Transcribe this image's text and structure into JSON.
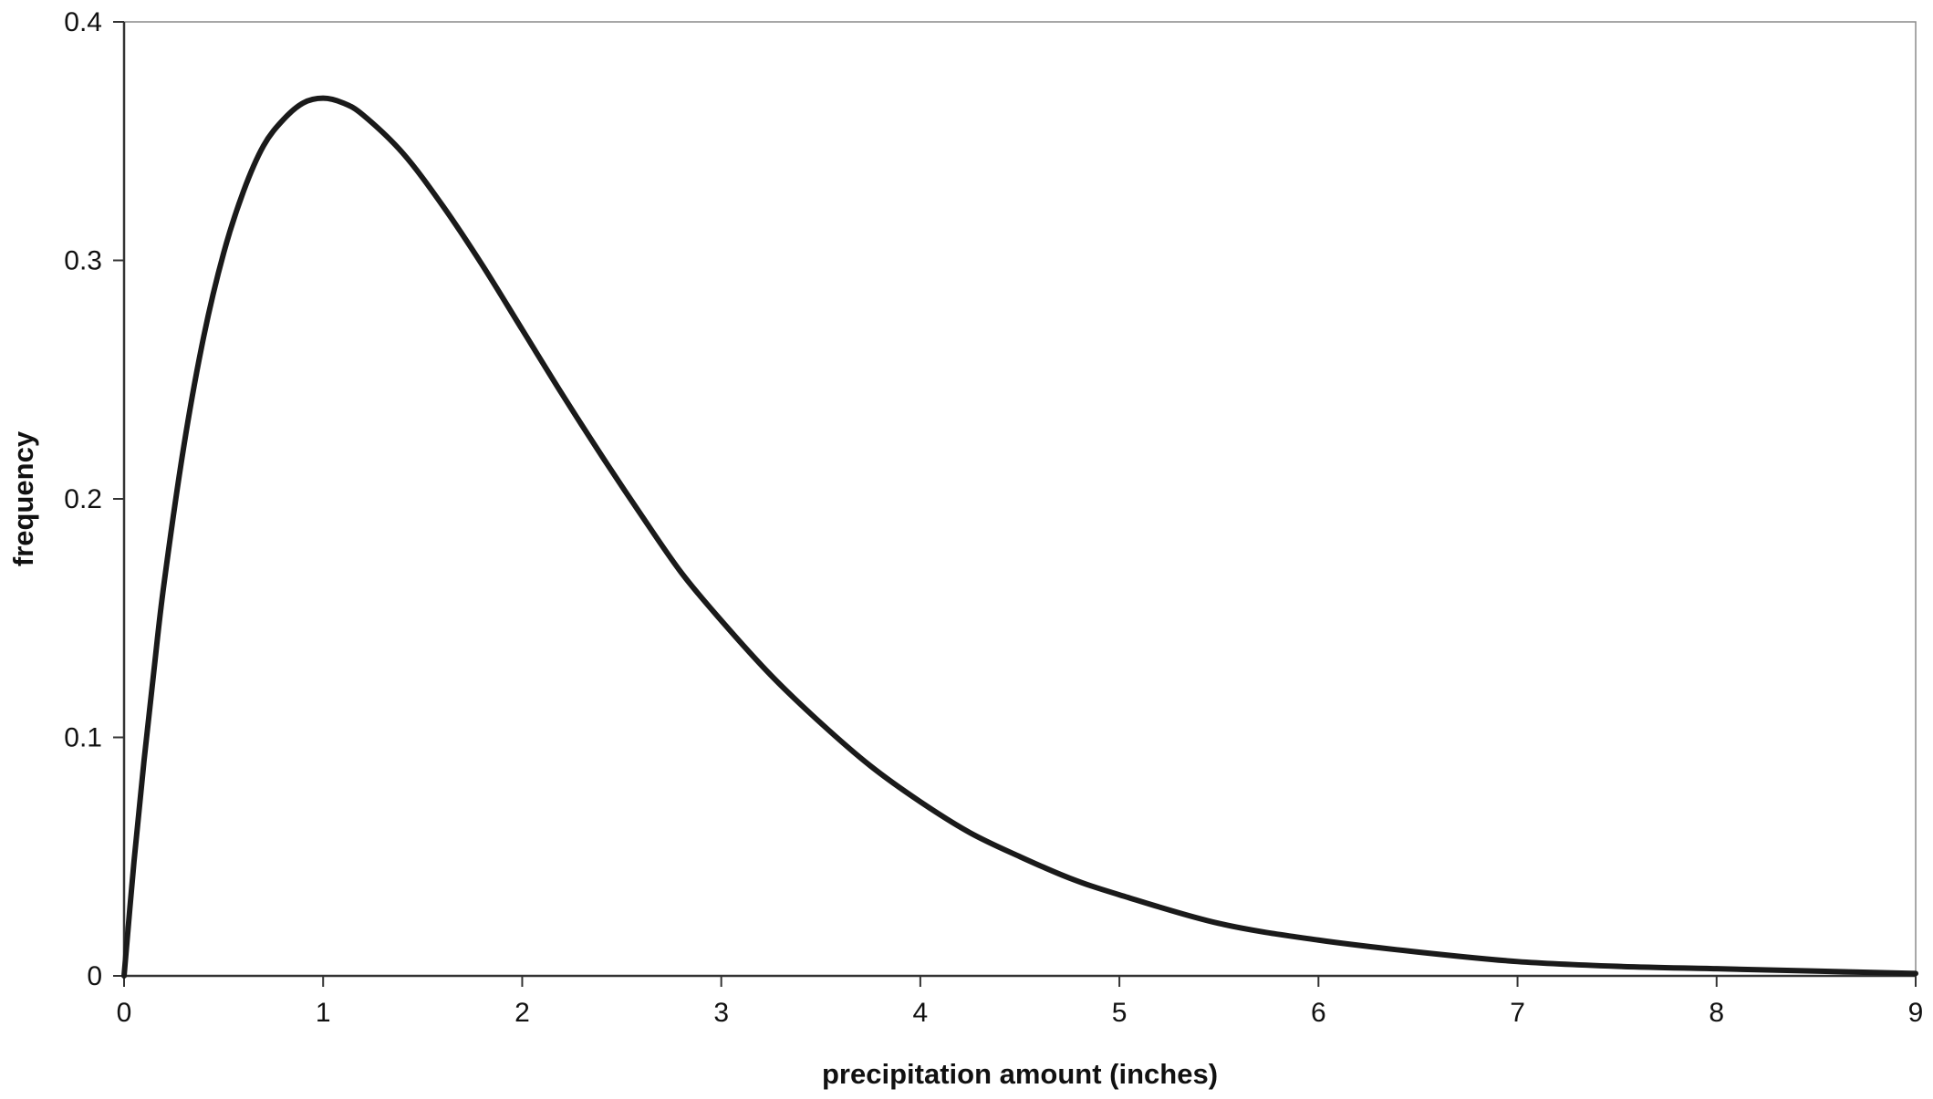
{
  "chart_data": {
    "type": "line",
    "title": "",
    "xlabel": "precipitation amount (inches)",
    "ylabel": "frequency",
    "xlim": [
      0,
      9
    ],
    "ylim": [
      0,
      0.4
    ],
    "x_ticks": [
      0,
      1,
      2,
      3,
      4,
      5,
      6,
      7,
      8,
      9
    ],
    "x_tick_labels": [
      "0",
      "1",
      "2",
      "3",
      "4",
      "5",
      "6",
      "7",
      "8",
      "9"
    ],
    "y_ticks": [
      0,
      0.1,
      0.2,
      0.3,
      0.4
    ],
    "y_tick_labels": [
      "0",
      "0.1",
      "0.2",
      "0.3",
      "0.4"
    ],
    "grid": false,
    "legend": "none",
    "line_color": "#1a1a1a",
    "series": [
      {
        "x": [
          0,
          0.05,
          0.1,
          0.15,
          0.2,
          0.3,
          0.4,
          0.5,
          0.6,
          0.7,
          0.8,
          0.9,
          1.0,
          1.1,
          1.2,
          1.4,
          1.6,
          1.8,
          2.0,
          2.2,
          2.4,
          2.6,
          2.8,
          3.0,
          3.25,
          3.5,
          3.75,
          4.0,
          4.25,
          4.5,
          4.75,
          5.0,
          5.5,
          6.0,
          6.5,
          7.0,
          7.5,
          8.0,
          8.5,
          9.0
        ],
        "y": [
          0,
          0.048,
          0.09,
          0.128,
          0.164,
          0.222,
          0.268,
          0.303,
          0.329,
          0.348,
          0.359,
          0.366,
          0.368,
          0.366,
          0.361,
          0.345,
          0.323,
          0.298,
          0.271,
          0.244,
          0.218,
          0.193,
          0.169,
          0.149,
          0.126,
          0.106,
          0.088,
          0.073,
          0.06,
          0.05,
          0.041,
          0.034,
          0.022,
          0.015,
          0.01,
          0.006,
          0.004,
          0.003,
          0.002,
          0.001
        ]
      }
    ]
  }
}
